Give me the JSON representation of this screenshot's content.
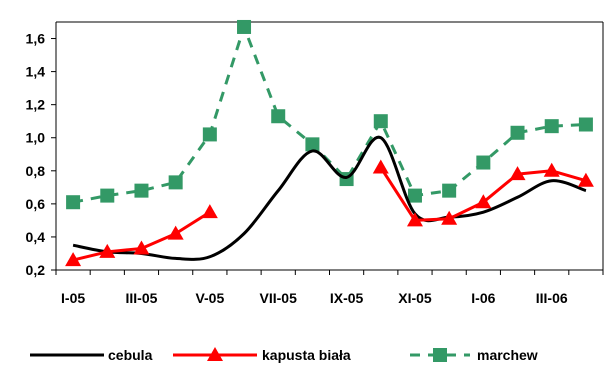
{
  "chart_data": {
    "type": "line",
    "x": [
      "I-05",
      "II-05",
      "III-05",
      "IV-05",
      "V-05",
      "VI-05",
      "VII-05",
      "VIII-05",
      "IX-05",
      "X-05",
      "XI-05",
      "XII-05",
      "I-06",
      "II-06",
      "III-06",
      "IV-06"
    ],
    "x_tick_labels": [
      "I-05",
      "III-05",
      "V-05",
      "VII-05",
      "IX-05",
      "XI-05",
      "I-06",
      "III-06"
    ],
    "ylim": [
      0.2,
      1.7
    ],
    "y_ticks": [
      "0,2",
      "0,4",
      "0,6",
      "0,8",
      "1,0",
      "1,2",
      "1,4",
      "1,6"
    ],
    "series": [
      {
        "name": "cebula",
        "color": "#000000",
        "style": "solid-smooth",
        "marker": "none",
        "values": [
          0.35,
          0.31,
          0.3,
          0.27,
          0.28,
          0.42,
          0.68,
          0.92,
          0.76,
          1.0,
          0.54,
          0.52,
          0.55,
          0.64,
          0.74,
          0.68
        ]
      },
      {
        "name": "kapusta biała",
        "color": "#ff0000",
        "style": "solid",
        "marker": "triangle",
        "values": [
          0.26,
          0.31,
          0.33,
          0.42,
          0.55,
          null,
          null,
          null,
          null,
          0.82,
          0.5,
          0.51,
          0.61,
          0.78,
          0.8,
          0.74
        ]
      },
      {
        "name": "marchew",
        "color": "#339966",
        "style": "dashed",
        "marker": "square",
        "values": [
          0.61,
          0.65,
          0.68,
          0.73,
          1.02,
          1.67,
          1.13,
          0.96,
          0.75,
          1.1,
          0.65,
          0.68,
          0.85,
          1.03,
          1.07,
          1.08
        ]
      }
    ],
    "grid": false,
    "legend_position": "bottom"
  }
}
